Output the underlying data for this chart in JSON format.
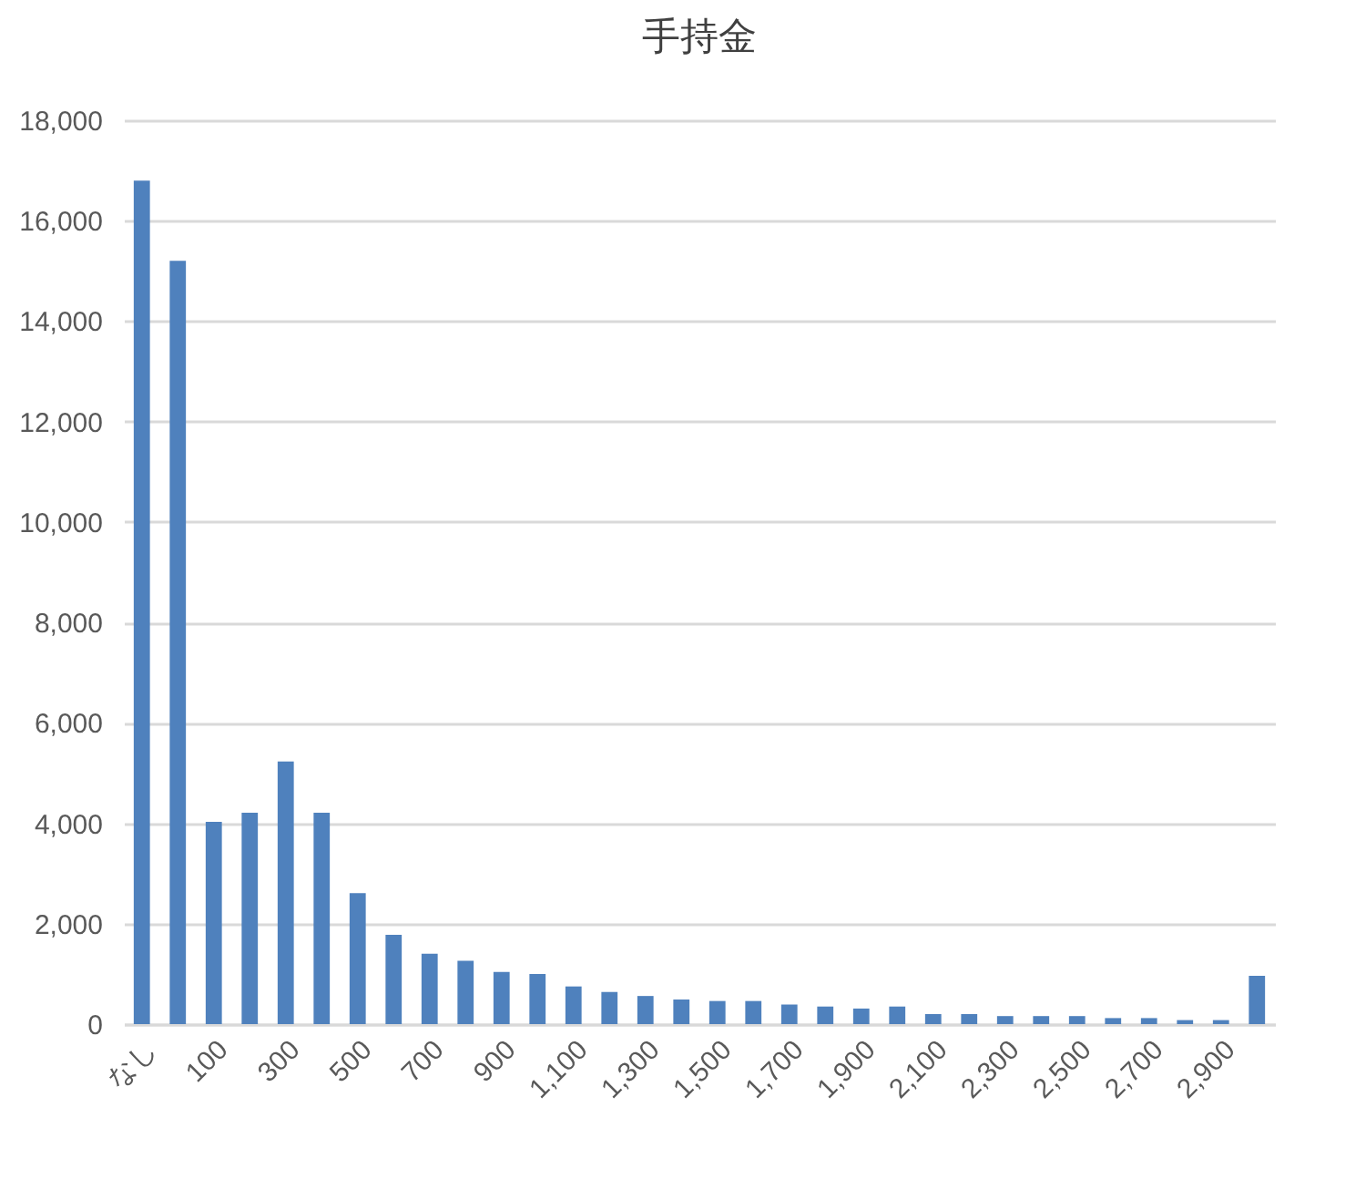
{
  "chart_data": {
    "type": "bar",
    "title": "手持金",
    "categories": [
      "なし",
      null,
      "100",
      null,
      "300",
      null,
      "500",
      null,
      "700",
      null,
      "900",
      null,
      "1,100",
      null,
      "1,300",
      null,
      "1,500",
      null,
      "1,700",
      null,
      "1,900",
      null,
      "2,100",
      null,
      "2,300",
      null,
      "2,500",
      null,
      "2,700",
      null,
      "2,900",
      null
    ],
    "values": [
      16800,
      15200,
      4030,
      4210,
      5230,
      4210,
      2610,
      1780,
      1400,
      1260,
      1040,
      1000,
      750,
      640,
      560,
      490,
      460,
      460,
      390,
      350,
      310,
      350,
      200,
      200,
      160,
      160,
      160,
      120,
      120,
      80,
      80,
      960
    ],
    "color": "#4f81bd",
    "ylim": [
      0,
      18000
    ],
    "yticks": [
      0,
      {
        "value": 2000,
        "label": "2,000"
      },
      {
        "value": 4000,
        "label": "4,000"
      },
      {
        "value": 6000,
        "label": "6,000"
      },
      {
        "value": 8000,
        "label": "8,000"
      },
      {
        "value": 10000,
        "label": "10,000"
      },
      {
        "value": 12000,
        "label": "12,000"
      },
      {
        "value": 14000,
        "label": "14,000"
      },
      {
        "value": 16000,
        "label": "16,000"
      },
      {
        "value": 18000,
        "label": "18,000"
      }
    ],
    "grid": "y"
  }
}
